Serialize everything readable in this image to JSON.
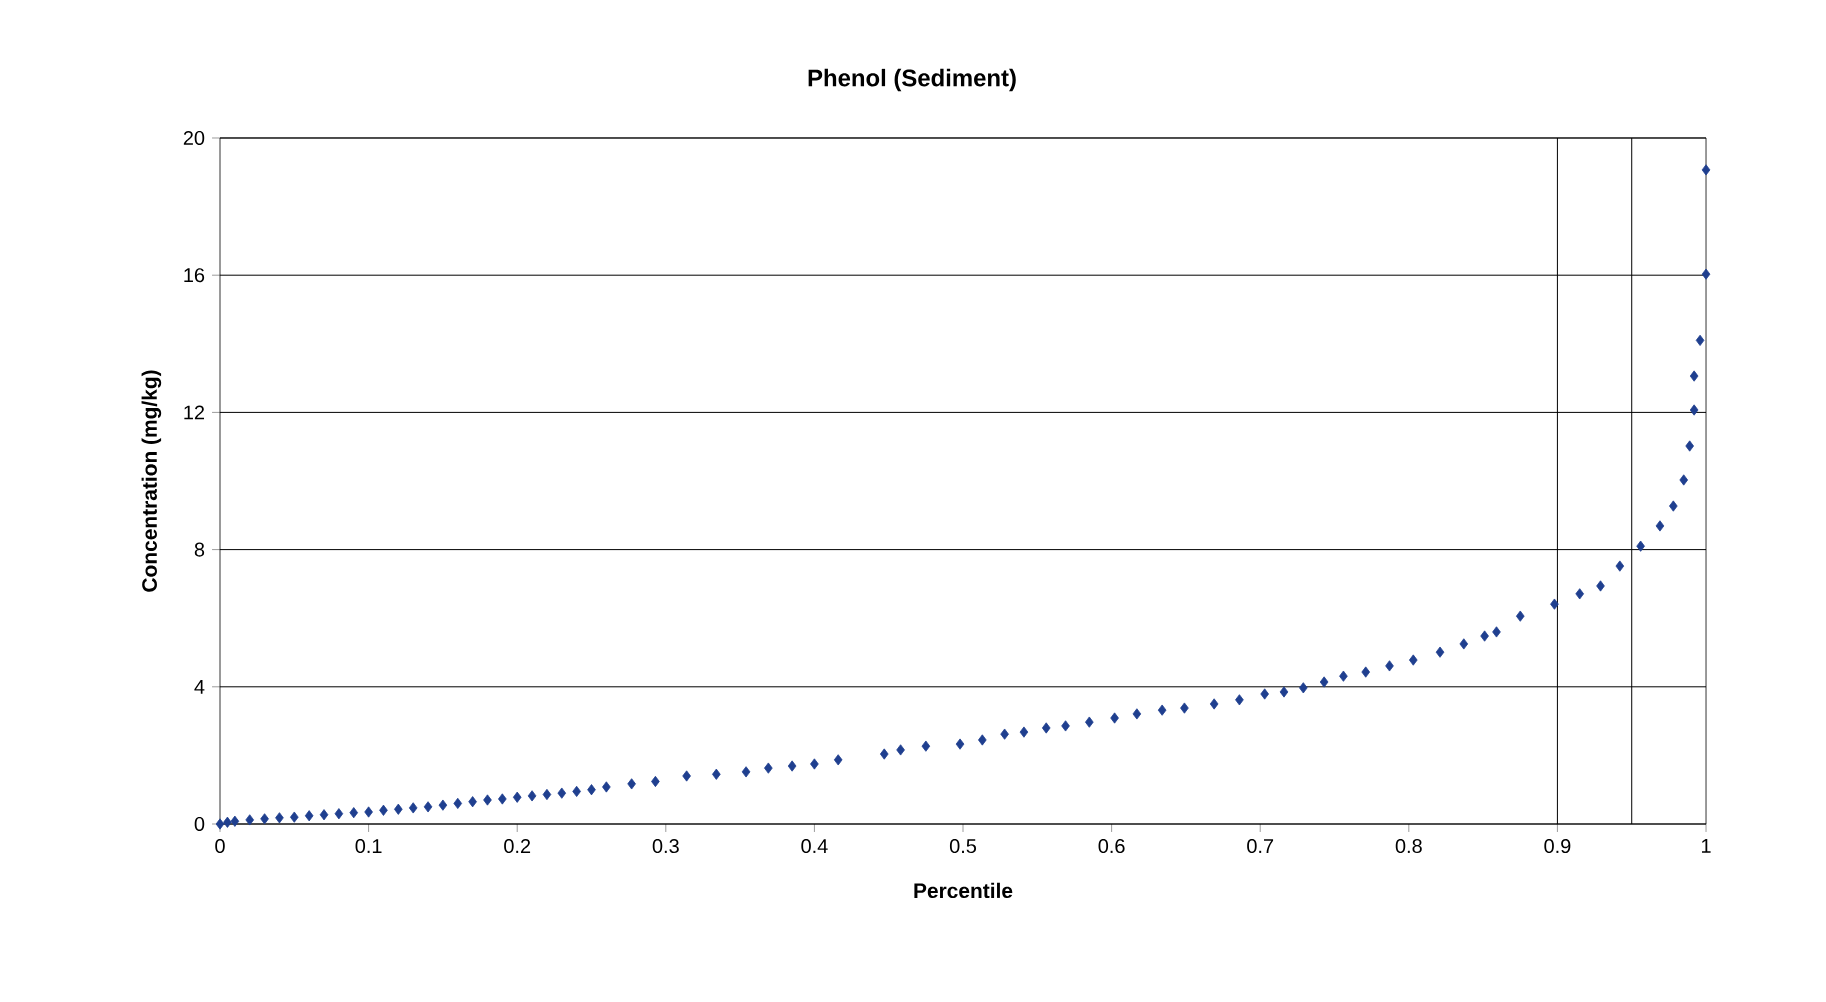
{
  "chart_data": {
    "type": "scatter",
    "title": "Phenol (Sediment)",
    "xlabel": "Percentile",
    "ylabel": "Concentration (mg/kg)",
    "x": [
      0.0,
      0.005,
      0.01,
      0.02,
      0.03,
      0.04,
      0.05,
      0.06,
      0.07,
      0.08,
      0.09,
      0.1,
      0.11,
      0.12,
      0.13,
      0.14,
      0.15,
      0.16,
      0.17,
      0.18,
      0.19,
      0.2,
      0.21,
      0.22,
      0.23,
      0.24,
      0.25,
      0.26,
      0.277,
      0.293,
      0.314,
      0.334,
      0.354,
      0.369,
      0.385,
      0.4,
      0.416,
      0.447,
      0.458,
      0.475,
      0.498,
      0.513,
      0.528,
      0.541,
      0.556,
      0.569,
      0.585,
      0.602,
      0.617,
      0.634,
      0.649,
      0.669,
      0.686,
      0.703,
      0.716,
      0.729,
      0.743,
      0.756,
      0.771,
      0.787,
      0.803,
      0.821,
      0.837,
      0.851,
      0.859,
      0.875,
      0.898,
      0.915,
      0.929,
      0.942,
      0.956,
      0.969,
      0.978,
      0.985,
      0.989,
      0.992,
      0.992,
      0.996,
      1.0,
      1.0
    ],
    "values": [
      0.0,
      0.05,
      0.08,
      0.12,
      0.15,
      0.18,
      0.2,
      0.24,
      0.27,
      0.3,
      0.33,
      0.35,
      0.4,
      0.43,
      0.47,
      0.5,
      0.55,
      0.6,
      0.65,
      0.7,
      0.73,
      0.78,
      0.82,
      0.86,
      0.9,
      0.95,
      1.0,
      1.08,
      1.17,
      1.24,
      1.4,
      1.45,
      1.52,
      1.63,
      1.69,
      1.75,
      1.87,
      2.04,
      2.16,
      2.27,
      2.33,
      2.45,
      2.62,
      2.68,
      2.8,
      2.86,
      2.97,
      3.09,
      3.21,
      3.32,
      3.38,
      3.5,
      3.62,
      3.79,
      3.85,
      3.97,
      4.14,
      4.31,
      4.43,
      4.61,
      4.78,
      5.01,
      5.25,
      5.48,
      5.6,
      6.06,
      6.41,
      6.71,
      6.94,
      7.52,
      8.1,
      8.69,
      9.27,
      10.03,
      11.02,
      12.07,
      13.06,
      14.1,
      16.03,
      19.07
    ],
    "color": "#1f3f8f",
    "marker": "diamond",
    "xlim": [
      0,
      1
    ],
    "ylim": [
      0,
      20
    ],
    "xticks": [
      0,
      0.1,
      0.2,
      0.3,
      0.4,
      0.5,
      0.6,
      0.7,
      0.8,
      0.9,
      1
    ],
    "yticks": [
      0,
      4,
      8,
      12,
      16,
      20
    ],
    "grid": "y",
    "ref_lines": [
      {
        "axis": "x",
        "value": 0.9
      },
      {
        "axis": "x",
        "value": 0.95
      }
    ]
  }
}
